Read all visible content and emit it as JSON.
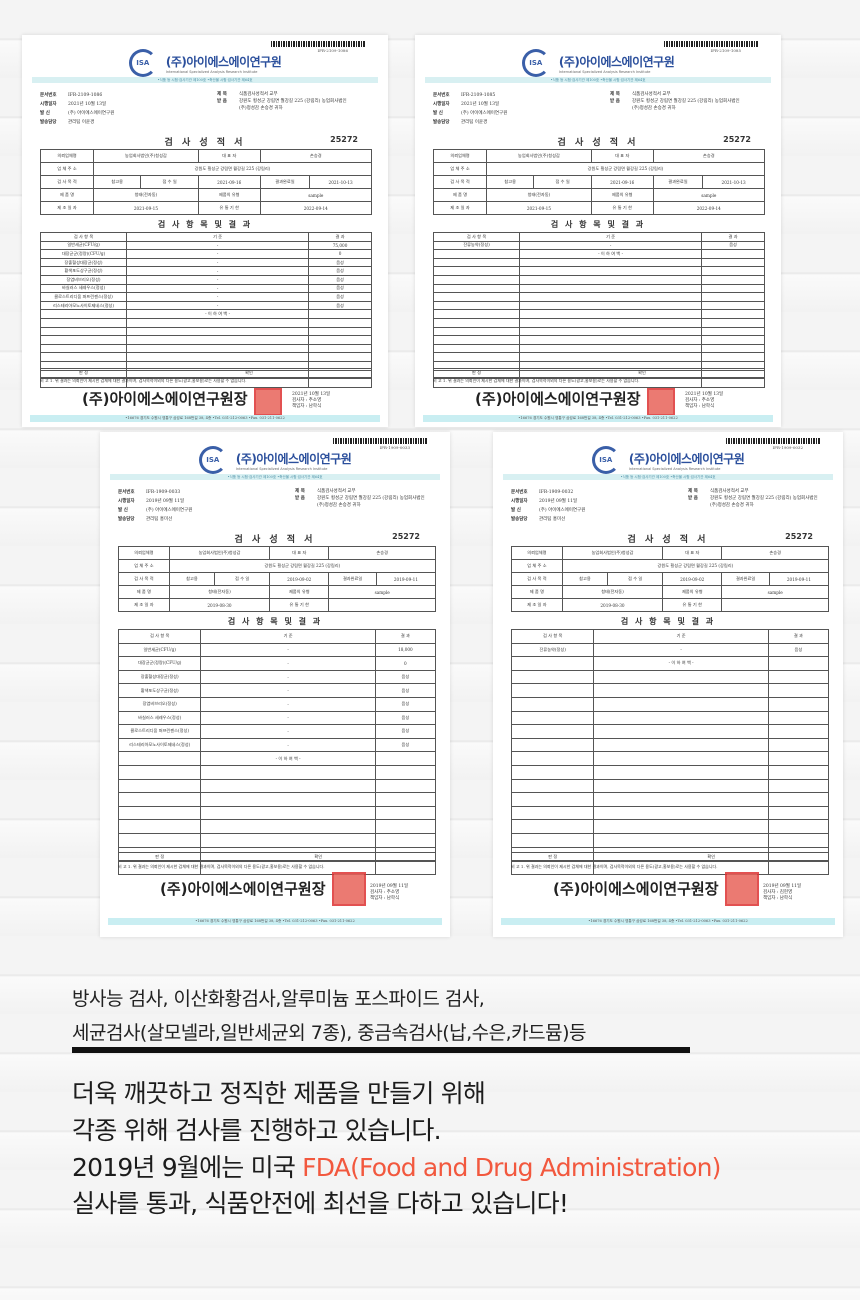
{
  "certificates": [
    {
      "barcode_no": "IFR-2109-1086",
      "org_name": "(주)아이에스에이연구원",
      "org_sub": "International Specialized Analysis Research Institute",
      "strip": "•식품 등 시험·검사기관 제100호   •축산물 시험·검사기관 제64호",
      "doc_no": "IFR-2109-1086",
      "issue_date": "2021년 10월 13일",
      "sender": "(주) 아이에스에이연구원",
      "manager": "관리팀 이윤경",
      "subject": "식품검사성적서 교부",
      "recipient": "강원도 횡성군 강림면 월강길 225 (강림리) 농업회사법인(주)청성감 손승경 귀하",
      "title": "검 사 성 적 서",
      "report_no": "25272",
      "client": "농업회사법인(주)청성감",
      "rep": "손승경",
      "address": "강원도 횡성군 강림면 월강길 225 (강림리)",
      "purpose": "참고용",
      "received": "2021-09-16",
      "completed": "2021-10-13",
      "product": "청태(전자동)",
      "type": "sample",
      "made": "2021-09-15",
      "expiry": "2022-09-14",
      "results_title": "검 사 항 목 및 결 과",
      "items": [
        {
          "name": "일반세균(CFU/g)",
          "std": "-",
          "result": "75,000"
        },
        {
          "name": "대장균군(정량)(CFU/g)",
          "std": "-",
          "result": "0"
        },
        {
          "name": "장출혈성대장균(정성)",
          "std": "-",
          "result": "음성"
        },
        {
          "name": "황색포도상구균(정성)",
          "std": "-",
          "result": "음성"
        },
        {
          "name": "장염비브리오(정성)",
          "std": "-",
          "result": "음성"
        },
        {
          "name": "바실러스 세레우스(정성)",
          "std": "-",
          "result": "음성"
        },
        {
          "name": "클로스트리디움 퍼프린젠스(정성)",
          "std": "-",
          "result": "음성"
        },
        {
          "name": "리스테리아모노사이토제네스(정성)",
          "std": "-",
          "result": "음성"
        }
      ],
      "end_mark": "- 이 하 여 백 -",
      "verdict": "판 정",
      "verdict_value": "확인",
      "note": "비 고  1. 위 결과는 의뢰인이 제시한 검체에 대한 결과이며, 검사목적이외의 다른 용도(광고,홍보용)로는 사용할 수 없습니다.",
      "signature": "(주)아이에스에이연구원장",
      "sign_date": "2021년 10월 13일",
      "inspector": "검사자 : 추소영",
      "chief": "책임자 : 남학식",
      "footer": "•16676 경기도 수원시 영통구 삼성로 168번길 38, 4층  •Tel. 031-212-0063  •Fax. 031-211-0622"
    },
    {
      "barcode_no": "IFR-2109-1085",
      "org_name": "(주)아이에스에이연구원",
      "org_sub": "International Specialized Analysis Research Institute",
      "strip": "•식품 등 시험·검사기관 제100호   •축산물 시험·검사기관 제64호",
      "doc_no": "IFR-2109-1085",
      "issue_date": "2021년 10월 13일",
      "sender": "(주) 아이에스에이연구원",
      "manager": "관리팀 이윤경",
      "subject": "식품검사성적서 교부",
      "recipient": "강원도 횡성군 강림면 월강길 225 (강림리) 농업회사법인(주)청성감 손승경 귀하",
      "title": "검 사 성 적 서",
      "report_no": "25272",
      "client": "농업회사법인(주)청성감",
      "rep": "손승경",
      "address": "강원도 횡성군 강림면 월강길 225 (강림리)",
      "purpose": "참고용",
      "received": "2021-09-16",
      "completed": "2021-10-13",
      "product": "청태(전자동)",
      "type": "sample",
      "made": "2021-09-15",
      "expiry": "2022-09-14",
      "results_title": "검 사 항 목 및 결 과",
      "items": [
        {
          "name": "잔류농약(정성)",
          "std": "-",
          "result": "음성"
        }
      ],
      "end_mark": "- 이 하 여 백 -",
      "verdict": "판 정",
      "verdict_value": "확인",
      "note": "비 고  1. 위 결과는 의뢰인이 제시한 검체에 대한 결과이며, 검사목적이외의 다른 용도(광고,홍보용)로는 사용할 수 없습니다.",
      "signature": "(주)아이에스에이연구원장",
      "sign_date": "2021년 10월 13일",
      "inspector": "검사자 : 추소영",
      "chief": "책임자 : 남학식",
      "footer": "•16676 경기도 수원시 영통구 삼성로 168번길 38, 4층  •Tel. 031-212-0063  •Fax. 031-211-0622"
    },
    {
      "barcode_no": "IFR-1909-0033",
      "org_name": "(주)아이에스에이연구원",
      "org_sub": "International Specialized Analysis Research Institute",
      "strip": "•식품 등 시험·검사기관 제100호   •축산물 시험·검사기관 제64호",
      "doc_no": "IFR-1909-0033",
      "issue_date": "2019년 09월 11일",
      "sender": "(주) 아이에스에이연구원",
      "manager": "관리팀 홍미선",
      "subject": "식품검사성적서 교부",
      "recipient": "강원도 횡성군 강림면 월강길 225 (강림리) 농업회사법인(주)청성감 손승경 귀하",
      "title": "검 사 성 적 서",
      "report_no": "25272",
      "client": "농업회사법인(주)청성감",
      "rep": "손승경",
      "address": "강원도 횡성군 강림면 월강길 225 (강림리)",
      "purpose": "참고용",
      "received": "2019-09-02",
      "completed": "2019-09-11",
      "product": "청태(전자동)",
      "type": "sample",
      "made": "2019-08-30",
      "expiry": "",
      "results_title": "검 사 항 목 및 결 과",
      "items": [
        {
          "name": "일반세균(CFU/g)",
          "std": "-",
          "result": "18,000"
        },
        {
          "name": "대장균군(정량)(CFU/g)",
          "std": "-",
          "result": "0"
        },
        {
          "name": "장출혈성대장균(정성)",
          "std": "-",
          "result": "음성"
        },
        {
          "name": "황색포도상구균(정성)",
          "std": "-",
          "result": "음성"
        },
        {
          "name": "장염비브리오(정성)",
          "std": "-",
          "result": "음성"
        },
        {
          "name": "바실러스 세레우스(정성)",
          "std": "-",
          "result": "음성"
        },
        {
          "name": "클로스트리디움 퍼프린젠스(정성)",
          "std": "-",
          "result": "음성"
        },
        {
          "name": "리스테리아모노사이토제네스(정성)",
          "std": "-",
          "result": "음성"
        }
      ],
      "end_mark": "- 이 하 여 백 -",
      "verdict": "판 정",
      "verdict_value": "확인",
      "note": "비 고  1. 위 결과는 의뢰인이 제시한 검체에 대한 결과이며, 검사목적이외의 다른 용도(광고,홍보용)로는 사용할 수 없습니다.",
      "signature": "(주)아이에스에이연구원장",
      "sign_date": "2019년 09월 11일",
      "inspector": "검사자 : 추소영",
      "chief": "책임자 : 남학식",
      "footer": "•16676 경기도 수원시 영통구 삼성로 168번길 38, 4층  •Tel. 031-212-0063  •Fax. 031-211-0622"
    },
    {
      "barcode_no": "IFR-1909-0032",
      "org_name": "(주)아이에스에이연구원",
      "org_sub": "International Specialized Analysis Research Institute",
      "strip": "•식품 등 시험·검사기관 제100호   •축산물 시험·검사기관 제64호",
      "doc_no": "IFR-1909-0032",
      "issue_date": "2019년 09월 11일",
      "sender": "(주) 아이에스에이연구원",
      "manager": "관리팀 홍미선",
      "subject": "식품검사성적서 교부",
      "recipient": "강원도 횡성군 강림면 월강길 225 (강림리) 농업회사법인(주)청성감 손승경 귀하",
      "title": "검 사 성 적 서",
      "report_no": "25272",
      "client": "농업회사법인(주)청성감",
      "rep": "손승경",
      "address": "강원도 횡성군 강림면 월강길 225 (강림리)",
      "purpose": "참고용",
      "received": "2019-09-02",
      "completed": "2019-09-11",
      "product": "청태(전자동)",
      "type": "sample",
      "made": "2019-08-30",
      "expiry": "",
      "results_title": "검 사 항 목 및 결 과",
      "items": [
        {
          "name": "잔류농약(정성)",
          "std": "-",
          "result": "음성"
        }
      ],
      "end_mark": "- 이 하 여 백 -",
      "verdict": "판 정",
      "verdict_value": "확인",
      "note": "비 고  1. 위 결과는 의뢰인이 제시한 검체에 대한 결과이며, 검사목적이외의 다른 용도(광고,홍보용)로는 사용할 수 없습니다.",
      "signature": "(주)아이에스에이연구원장",
      "sign_date": "2019년 09월 11일",
      "inspector": "검사자 : 김현영",
      "chief": "책임자 : 남학식",
      "footer": "•16676 경기도 수원시 영통구 삼성로 168번길 38, 4층  •Tel. 031-212-0063  •Fax. 031-211-0622"
    }
  ],
  "labels": {
    "doc_no": "문서번호",
    "issue_date": "시행일자",
    "sender": "발    신",
    "manager": "발송담당",
    "subject": "제    목",
    "recipient": "받    음",
    "client": "의뢰업체명",
    "rep": "대 표 자",
    "address": "업 체 주 소",
    "purpose": "검 사 목 적",
    "received": "접 수 일",
    "completed": "결과완료일",
    "product": "제 품 명",
    "type": "제품의 유형",
    "made": "제 조 일 자",
    "expiry": "유 통 기 한",
    "col_item": "검 사 항 목",
    "col_std": "기 준",
    "col_result": "결 과"
  },
  "description": {
    "line1": "방사능 검사, 이산화황검사,알루미늄 포스파이드 검사,",
    "line2": "세균검사(살모넬라,일반세균외 7종), 중금속검사(납,수은,카드뮴)등",
    "para1": "더욱 깨끗하고 정직한 제품을 만들기 위해",
    "para2": "각종 위해 검사를 진행하고 있습니다.",
    "para3_pre": "2019년 9월에는 미국 ",
    "para3_highlight": "FDA(Food and Drug Administration)",
    "para4": "실사를 통과, 식품안전에 최선을 다하고 있습니다!",
    "highlight_color": "#f2583e"
  }
}
